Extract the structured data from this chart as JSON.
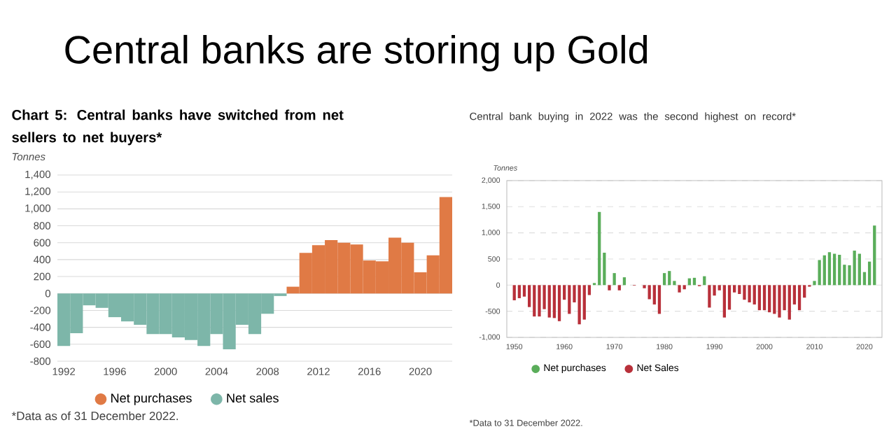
{
  "chart_data": [
    {
      "type": "other",
      "title": "Central banks are storing up Gold"
    },
    {
      "type": "bar",
      "subtitle": "Chart 5: Central banks have switched from net sellers to net buyers*",
      "ylabel": "Tonnes",
      "x": [
        1992,
        1993,
        1994,
        1995,
        1996,
        1997,
        1998,
        1999,
        2000,
        2001,
        2002,
        2003,
        2004,
        2005,
        2006,
        2007,
        2008,
        2009,
        2010,
        2011,
        2012,
        2013,
        2014,
        2015,
        2016,
        2017,
        2018,
        2019,
        2020,
        2021,
        2022
      ],
      "series": [
        {
          "name": "Net purchases",
          "color": "#e07a45",
          "values": [
            null,
            null,
            null,
            null,
            null,
            null,
            null,
            null,
            null,
            null,
            null,
            null,
            null,
            null,
            null,
            null,
            null,
            null,
            80,
            480,
            570,
            630,
            600,
            580,
            390,
            380,
            660,
            600,
            250,
            450,
            1140
          ]
        },
        {
          "name": "Net sales",
          "color": "#7db6a9",
          "values": [
            -620,
            -470,
            -140,
            -170,
            -280,
            -330,
            -370,
            -480,
            -480,
            -520,
            -550,
            -620,
            -480,
            -660,
            -370,
            -480,
            -240,
            -30,
            null,
            null,
            null,
            null,
            null,
            null,
            null,
            null,
            null,
            null,
            null,
            null,
            null
          ]
        }
      ],
      "xlim": [
        1991.5,
        2022.5
      ],
      "xticks": [
        1992,
        1996,
        2000,
        2004,
        2008,
        2012,
        2016,
        2020
      ],
      "ylim": [
        -800,
        1400
      ],
      "yticks": [
        {
          "value": -800,
          "label": "-800"
        },
        {
          "value": -600,
          "label": "-600"
        },
        {
          "value": -400,
          "label": "-400"
        },
        {
          "value": -200,
          "label": "-200"
        },
        0,
        200,
        400,
        600,
        800,
        {
          "value": 1000,
          "label": "1,000"
        },
        {
          "value": 1200,
          "label": "1,200"
        },
        {
          "value": 1400,
          "label": "1,400"
        }
      ],
      "grid": "y",
      "legend": "bottom left",
      "annotations": [
        "*Data as of 31 December 2022."
      ]
    },
    {
      "type": "bar",
      "title": "Central bank buying in 2022 was the second highest on record*",
      "ylabel": "Tonnes",
      "x": [
        1950,
        1951,
        1952,
        1953,
        1954,
        1955,
        1956,
        1957,
        1958,
        1959,
        1960,
        1961,
        1962,
        1963,
        1964,
        1965,
        1966,
        1967,
        1968,
        1969,
        1970,
        1971,
        1972,
        1973,
        1974,
        1975,
        1976,
        1977,
        1978,
        1979,
        1980,
        1981,
        1982,
        1983,
        1984,
        1985,
        1986,
        1987,
        1988,
        1989,
        1990,
        1991,
        1992,
        1993,
        1994,
        1995,
        1996,
        1997,
        1998,
        1999,
        2000,
        2001,
        2002,
        2003,
        2004,
        2005,
        2006,
        2007,
        2008,
        2009,
        2010,
        2011,
        2012,
        2013,
        2014,
        2015,
        2016,
        2017,
        2018,
        2019,
        2020,
        2021,
        2022
      ],
      "series": [
        {
          "name": "Net purchases",
          "color": "#5aad5a",
          "values": [
            null,
            null,
            null,
            null,
            null,
            null,
            null,
            null,
            null,
            null,
            null,
            null,
            null,
            null,
            null,
            null,
            40,
            1400,
            620,
            null,
            230,
            null,
            150,
            null,
            null,
            null,
            null,
            null,
            null,
            null,
            230,
            270,
            80,
            null,
            null,
            130,
            140,
            null,
            170,
            null,
            null,
            null,
            null,
            null,
            null,
            null,
            null,
            null,
            null,
            null,
            null,
            null,
            null,
            null,
            null,
            null,
            null,
            null,
            null,
            null,
            80,
            480,
            570,
            630,
            600,
            580,
            390,
            380,
            660,
            600,
            250,
            450,
            1140
          ]
        },
        {
          "name": "Net Sales",
          "color": "#b8303a",
          "values": [
            -290,
            -250,
            -220,
            -420,
            -600,
            -600,
            -460,
            -620,
            -630,
            -690,
            -280,
            -550,
            -330,
            -750,
            -660,
            -190,
            null,
            null,
            null,
            -100,
            null,
            -100,
            null,
            null,
            -10,
            null,
            -60,
            -270,
            -370,
            -550,
            null,
            null,
            null,
            -140,
            -80,
            null,
            null,
            -20,
            null,
            -430,
            -200,
            -100,
            -620,
            -470,
            -140,
            -170,
            -280,
            -330,
            -370,
            -480,
            -480,
            -520,
            -550,
            -620,
            -480,
            -660,
            -370,
            -480,
            -240,
            -30,
            null,
            null,
            null,
            null,
            null,
            null,
            null,
            null,
            null,
            null,
            null,
            null,
            null
          ]
        }
      ],
      "xlim": [
        1948.5,
        2023.5
      ],
      "xticks": [
        1950,
        1960,
        1970,
        1980,
        1990,
        2000,
        2010,
        2020
      ],
      "ylim": [
        -1000,
        2000
      ],
      "yticks": [
        {
          "value": -1000,
          "label": "-1,000"
        },
        {
          "value": -500,
          "label": "-500"
        },
        0,
        500,
        {
          "value": 1000,
          "label": "1,000"
        },
        {
          "value": 1500,
          "label": "1,500"
        },
        {
          "value": 2000,
          "label": "2,000"
        }
      ],
      "grid": "y",
      "legend": "bottom left",
      "annotations": [
        "*Data to 31 December 2022."
      ]
    }
  ]
}
